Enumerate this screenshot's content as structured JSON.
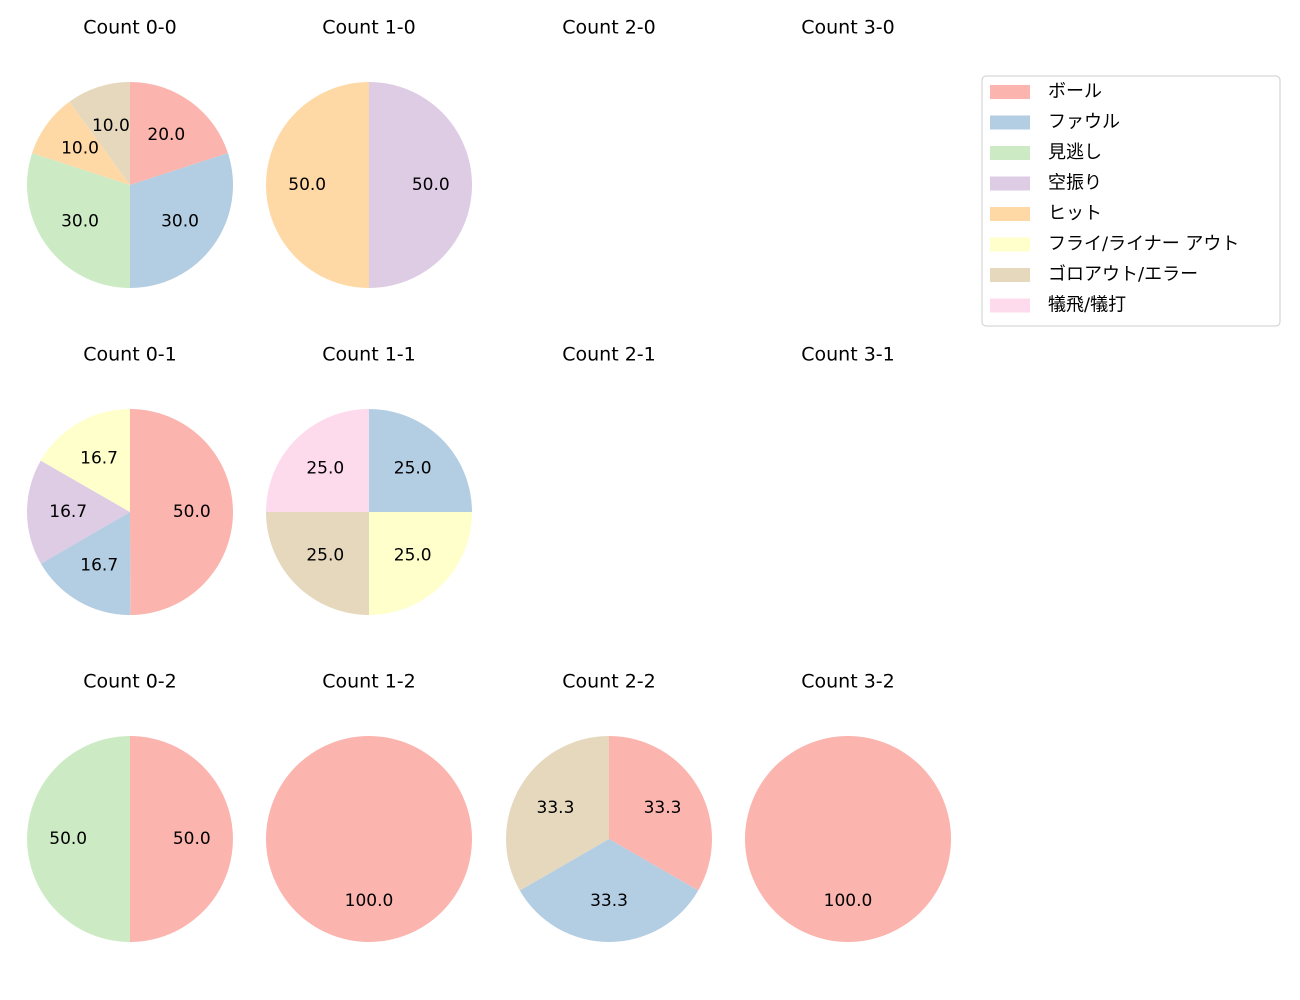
{
  "chart_data": [
    {
      "type": "pie",
      "title": "Count 0-0",
      "categories": [
        "ボール",
        "ファウル",
        "見逃し",
        "ヒット",
        "ゴロアウト/エラー"
      ],
      "values": [
        20,
        30,
        30,
        10,
        10
      ],
      "value_labels": [
        "20.0",
        "30.0",
        "30.0",
        "10.0",
        "10.0"
      ],
      "colors": [
        "#fbb4ae",
        "#b3cde3",
        "#ccebc5",
        "#fed9a6",
        "#e5d8bd"
      ]
    },
    {
      "type": "pie",
      "title": "Count 1-0",
      "categories": [
        "空振り",
        "ヒット"
      ],
      "values": [
        50,
        50
      ],
      "value_labels": [
        "50.0",
        "50.0"
      ],
      "colors": [
        "#decbe4",
        "#fed9a6"
      ]
    },
    {
      "type": "pie",
      "title": "Count 2-0"
    },
    {
      "type": "pie",
      "title": "Count 3-0"
    },
    {
      "type": "pie",
      "title": "Count 0-1",
      "categories": [
        "ボール",
        "ファウル",
        "空振り",
        "フライ/ライナー アウト"
      ],
      "values": [
        50,
        16.7,
        16.7,
        16.7
      ],
      "value_labels": [
        "50.0",
        "16.7",
        "16.7",
        "16.7"
      ],
      "colors": [
        "#fbb4ae",
        "#b3cde3",
        "#decbe4",
        "#ffffcc"
      ]
    },
    {
      "type": "pie",
      "title": "Count 1-1",
      "categories": [
        "ファウル",
        "フライ/ライナー アウト",
        "ゴロアウト/エラー",
        "犠飛/犠打"
      ],
      "values": [
        25,
        25,
        25,
        25
      ],
      "value_labels": [
        "25.0",
        "25.0",
        "25.0",
        "25.0"
      ],
      "colors": [
        "#b3cde3",
        "#ffffcc",
        "#e5d8bd",
        "#fddaec"
      ]
    },
    {
      "type": "pie",
      "title": "Count 2-1"
    },
    {
      "type": "pie",
      "title": "Count 3-1"
    },
    {
      "type": "pie",
      "title": "Count 0-2",
      "categories": [
        "ボール",
        "見逃し"
      ],
      "values": [
        50,
        50
      ],
      "value_labels": [
        "50.0",
        "50.0"
      ],
      "colors": [
        "#fbb4ae",
        "#ccebc5"
      ]
    },
    {
      "type": "pie",
      "title": "Count 1-2",
      "categories": [
        "ボール"
      ],
      "values": [
        100
      ],
      "value_labels": [
        "100.0"
      ],
      "colors": [
        "#fbb4ae"
      ]
    },
    {
      "type": "pie",
      "title": "Count 2-2",
      "categories": [
        "ボール",
        "ファウル",
        "ゴロアウト/エラー"
      ],
      "values": [
        33.3,
        33.3,
        33.3
      ],
      "value_labels": [
        "33.3",
        "33.3",
        "33.3"
      ],
      "colors": [
        "#fbb4ae",
        "#b3cde3",
        "#e5d8bd"
      ]
    },
    {
      "type": "pie",
      "title": "Count 3-2",
      "categories": [
        "ボール"
      ],
      "values": [
        100
      ],
      "value_labels": [
        "100.0"
      ],
      "colors": [
        "#fbb4ae"
      ]
    }
  ],
  "legend": {
    "position": "upper right",
    "entries": [
      {
        "name": "ボール",
        "color": "#fbb4ae"
      },
      {
        "name": "ファウル",
        "color": "#b3cde3"
      },
      {
        "name": "見逃し",
        "color": "#ccebc5"
      },
      {
        "name": "空振り",
        "color": "#decbe4"
      },
      {
        "name": "ヒット",
        "color": "#fed9a6"
      },
      {
        "name": "フライ/ライナー アウト",
        "color": "#ffffcc"
      },
      {
        "name": "ゴロアウト/エラー",
        "color": "#e5d8bd"
      },
      {
        "name": "犠飛/犠打",
        "color": "#fddaec"
      }
    ]
  }
}
